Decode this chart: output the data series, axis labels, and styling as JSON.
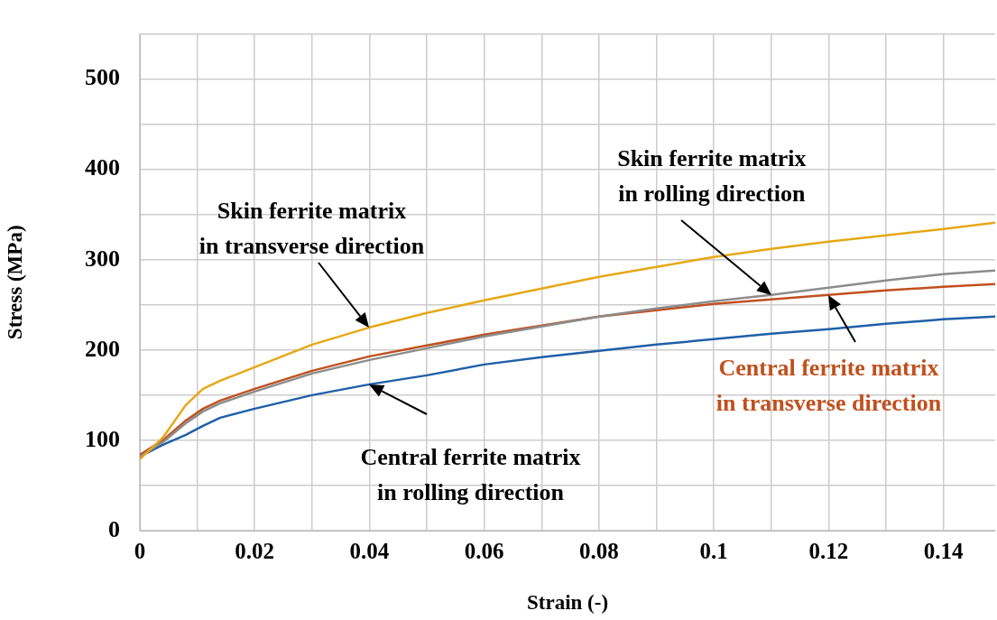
{
  "chart_data": {
    "type": "line",
    "xlabel": "Strain (-)",
    "ylabel": "Stress (MPa)",
    "x": [
      0,
      0.004,
      0.008,
      0.011,
      0.014,
      0.02,
      0.03,
      0.04,
      0.05,
      0.06,
      0.07,
      0.08,
      0.09,
      0.1,
      0.11,
      0.12,
      0.13,
      0.14,
      0.149
    ],
    "series": [
      {
        "name": "Skin ferrite matrix in transverse direction",
        "color": "#e6a817",
        "values": [
          79,
          103,
          139,
          157,
          166,
          181,
          206,
          225,
          241,
          255,
          268,
          281,
          292,
          303,
          312,
          320,
          327,
          334,
          341
        ]
      },
      {
        "name": "Skin ferrite matrix in rolling direction",
        "color": "#8c8c8c",
        "values": [
          82,
          98,
          119,
          132,
          141,
          154,
          174,
          189,
          202,
          215,
          226,
          237,
          246,
          254,
          261,
          269,
          277,
          284,
          288
        ]
      },
      {
        "name": "Central ferrite matrix in transverse direction",
        "color": "#c0501e",
        "values": [
          84,
          100,
          122,
          135,
          144,
          157,
          177,
          193,
          205,
          217,
          227,
          237,
          244,
          251,
          256,
          261,
          266,
          270,
          273
        ]
      },
      {
        "name": "Central ferrite matrix in rolling direction",
        "color": "#1f5fa8",
        "values": [
          82,
          95,
          106,
          116,
          125,
          135,
          150,
          162,
          172,
          184,
          192,
          199,
          206,
          212,
          218,
          223,
          229,
          234,
          237
        ]
      }
    ],
    "xlim": [
      0,
      0.149
    ],
    "ylim": [
      0,
      550
    ],
    "xticks": [
      0,
      {
        "value": 0.01,
        "label": null
      },
      0.02,
      {
        "value": 0.03,
        "label": null
      },
      0.04,
      {
        "value": 0.05,
        "label": null
      },
      0.06,
      {
        "value": 0.07,
        "label": null
      },
      0.08,
      {
        "value": 0.09,
        "label": null
      },
      0.1,
      {
        "value": 0.11,
        "label": null
      },
      0.12,
      {
        "value": 0.13,
        "label": null
      },
      0.14
    ],
    "yticks": [
      0,
      {
        "value": 50,
        "label": null
      },
      100,
      {
        "value": 150,
        "label": null
      },
      200,
      {
        "value": 250,
        "label": null
      },
      300,
      {
        "value": 350,
        "label": null
      },
      400,
      {
        "value": 450,
        "label": null
      },
      500,
      {
        "value": 550,
        "label": null
      }
    ],
    "grid": true,
    "legend": false,
    "marker": "none",
    "line_style": "solid"
  }
}
